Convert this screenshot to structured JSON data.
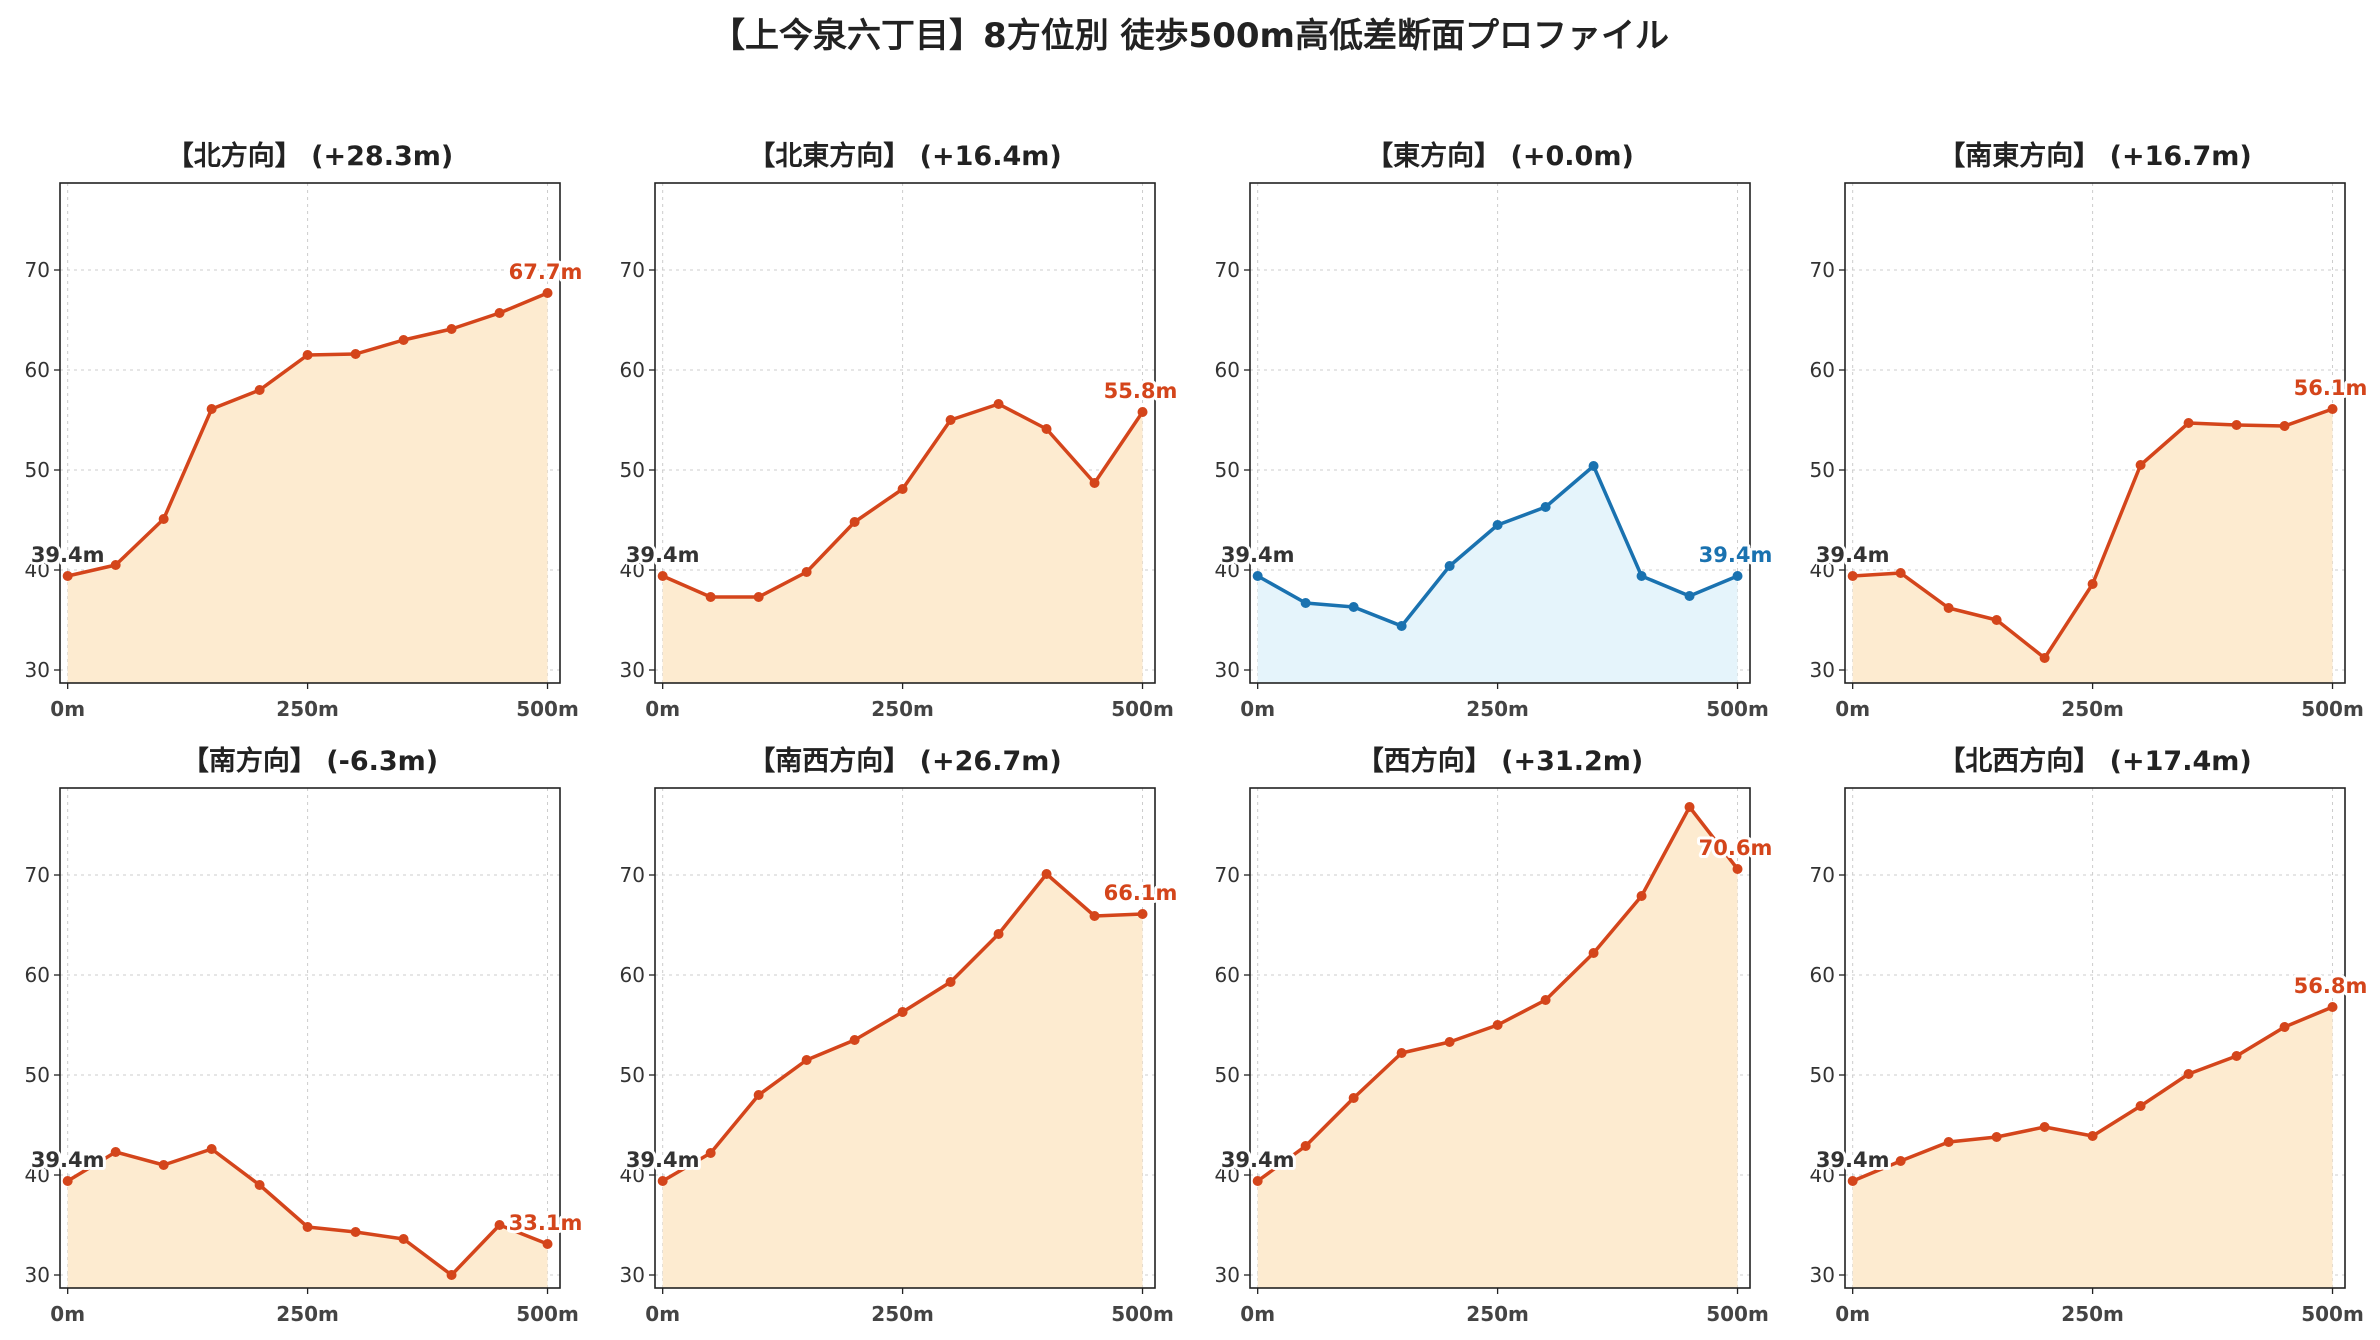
{
  "title": "【上今泉六丁目】8方位別 徒歩500m高低差断面プロファイル",
  "chart_data": [
    {
      "type": "line",
      "title": "【北方向】 (+28.3m)",
      "x": [
        0,
        50,
        100,
        150,
        200,
        250,
        300,
        350,
        400,
        450,
        500
      ],
      "values": [
        39.4,
        40.5,
        45.1,
        56.1,
        58.0,
        61.5,
        61.6,
        63.0,
        64.1,
        65.7,
        67.7
      ],
      "start_label": "39.4m",
      "end_label": "67.7m",
      "color": "#d4451b",
      "fill": "#fdebd0"
    },
    {
      "type": "line",
      "title": "【北東方向】 (+16.4m)",
      "x": [
        0,
        50,
        100,
        150,
        200,
        250,
        300,
        350,
        400,
        450,
        500
      ],
      "values": [
        39.4,
        37.3,
        37.3,
        39.8,
        44.8,
        48.1,
        55.0,
        56.6,
        54.1,
        48.7,
        55.8
      ],
      "start_label": "39.4m",
      "end_label": "55.8m",
      "color": "#d4451b",
      "fill": "#fdebd0"
    },
    {
      "type": "line",
      "title": "【東方向】 (+0.0m)",
      "x": [
        0,
        50,
        100,
        150,
        200,
        250,
        300,
        350,
        400,
        450,
        500
      ],
      "values": [
        39.4,
        36.7,
        36.3,
        34.4,
        40.4,
        44.5,
        46.3,
        50.4,
        39.4,
        37.4,
        39.4
      ],
      "start_label": "39.4m",
      "end_label": "39.4m",
      "color": "#1a72b0",
      "fill": "#e5f4fb"
    },
    {
      "type": "line",
      "title": "【南東方向】 (+16.7m)",
      "x": [
        0,
        50,
        100,
        150,
        200,
        250,
        300,
        350,
        400,
        450,
        500
      ],
      "values": [
        39.4,
        39.7,
        36.2,
        35.0,
        31.2,
        38.6,
        50.5,
        54.7,
        54.5,
        54.4,
        56.1
      ],
      "start_label": "39.4m",
      "end_label": "56.1m",
      "color": "#d4451b",
      "fill": "#fdebd0"
    },
    {
      "type": "line",
      "title": "【南方向】 (-6.3m)",
      "x": [
        0,
        50,
        100,
        150,
        200,
        250,
        300,
        350,
        400,
        450,
        500
      ],
      "values": [
        39.4,
        42.3,
        41.0,
        42.6,
        39.0,
        34.8,
        34.3,
        33.6,
        30.0,
        35.0,
        33.1
      ],
      "start_label": "39.4m",
      "end_label": "33.1m",
      "color": "#d4451b",
      "fill": "#fdebd0"
    },
    {
      "type": "line",
      "title": "【南西方向】 (+26.7m)",
      "x": [
        0,
        50,
        100,
        150,
        200,
        250,
        300,
        350,
        400,
        450,
        500
      ],
      "values": [
        39.4,
        42.2,
        48.0,
        51.5,
        53.5,
        56.3,
        59.3,
        64.1,
        70.1,
        65.9,
        66.1
      ],
      "start_label": "39.4m",
      "end_label": "66.1m",
      "color": "#d4451b",
      "fill": "#fdebd0"
    },
    {
      "type": "line",
      "title": "【西方向】 (+31.2m)",
      "x": [
        0,
        50,
        100,
        150,
        200,
        250,
        300,
        350,
        400,
        450,
        500
      ],
      "values": [
        39.4,
        42.9,
        47.7,
        52.2,
        53.3,
        55.0,
        57.5,
        62.2,
        67.9,
        76.8,
        70.6
      ],
      "start_label": "39.4m",
      "end_label": "70.6m",
      "color": "#d4451b",
      "fill": "#fdebd0"
    },
    {
      "type": "line",
      "title": "【北西方向】 (+17.4m)",
      "x": [
        0,
        50,
        100,
        150,
        200,
        250,
        300,
        350,
        400,
        450,
        500
      ],
      "values": [
        39.4,
        41.4,
        43.3,
        43.8,
        44.8,
        43.9,
        46.9,
        50.1,
        51.9,
        54.8,
        56.8
      ],
      "start_label": "39.4m",
      "end_label": "56.8m",
      "color": "#d4451b",
      "fill": "#fdebd0"
    }
  ],
  "axes": {
    "xlim": [
      -8,
      513
    ],
    "ylim": [
      28.7,
      78.7
    ],
    "yticks": [
      30,
      40,
      50,
      60,
      70
    ],
    "xticks": [
      0,
      250,
      500
    ],
    "xtick_labels": [
      "0m",
      "250m",
      "500m"
    ],
    "grid": true
  },
  "colors": {
    "axis": "#222222",
    "grid": "#cccccc",
    "start_label": "#333333"
  }
}
